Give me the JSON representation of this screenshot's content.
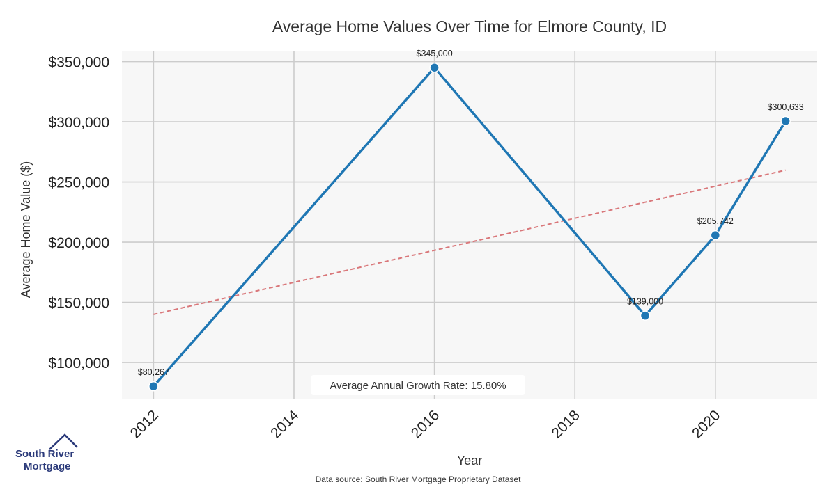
{
  "chart_data": {
    "type": "line",
    "title": "Average Home Values Over Time for Elmore County, ID",
    "xlabel": "Year",
    "ylabel": "Average Home Value ($)",
    "x_ticks": [
      2012,
      2014,
      2016,
      2018,
      2020
    ],
    "y_ticks": [
      100000,
      150000,
      200000,
      250000,
      300000,
      350000
    ],
    "y_tick_labels": [
      "$100,000",
      "$150,000",
      "$200,000",
      "$250,000",
      "$300,000",
      "$350,000"
    ],
    "xlim": [
      2011.55,
      2021.45
    ],
    "ylim": [
      70000,
      359000
    ],
    "grid": true,
    "series": [
      {
        "x": [
          2012,
          2016,
          2019,
          2020,
          2021
        ],
        "values": [
          80267,
          345000,
          139000,
          205742,
          300633
        ],
        "labels": [
          "$80,267",
          "$345,000",
          "$139,000",
          "$205,742",
          "$300,633"
        ],
        "color": "#1f77b4"
      }
    ],
    "trendline": {
      "x": [
        2012,
        2021
      ],
      "values": [
        140000,
        259800
      ],
      "color": "#d9777a"
    },
    "annotation": "Average Annual Growth Rate: 15.80%",
    "source": "Data source: South River Mortgage Proprietary Dataset"
  },
  "logo": {
    "line1": "South River",
    "line2": "Mortgage",
    "color": "#2b3a7a"
  },
  "colors": {
    "plot_background": "#f7f7f7",
    "grid": "#cccccc"
  }
}
